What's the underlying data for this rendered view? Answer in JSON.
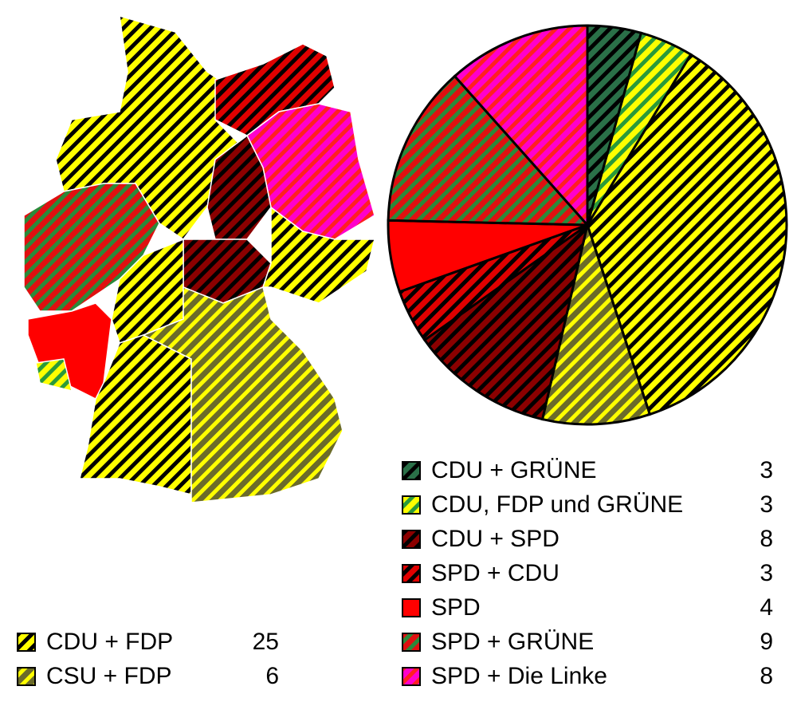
{
  "chart_data": {
    "type": "pie",
    "categories": [
      "CDU + GRÜNE",
      "CDU, FDP und GRÜNE",
      "CDU + FDP",
      "CSU + FDP",
      "CDU + SPD",
      "SPD + CDU",
      "SPD",
      "SPD + GRÜNE",
      "SPD + Die Linke"
    ],
    "values": [
      3,
      3,
      25,
      6,
      8,
      3,
      4,
      9,
      8
    ],
    "colors": [
      "#2a7048",
      "#ffff00",
      "#ffff00",
      "#6b6b2a",
      "#8b0000",
      "#e00000",
      "#ff0000",
      "#e01010",
      "#ff00cc"
    ],
    "stripe_colors": [
      "#000000",
      "#2a9a3a",
      "#000000",
      "#ffff00",
      "#000000",
      "#000000",
      "#ff0000",
      "#2a8a3a",
      "#ff2020"
    ]
  }
}
